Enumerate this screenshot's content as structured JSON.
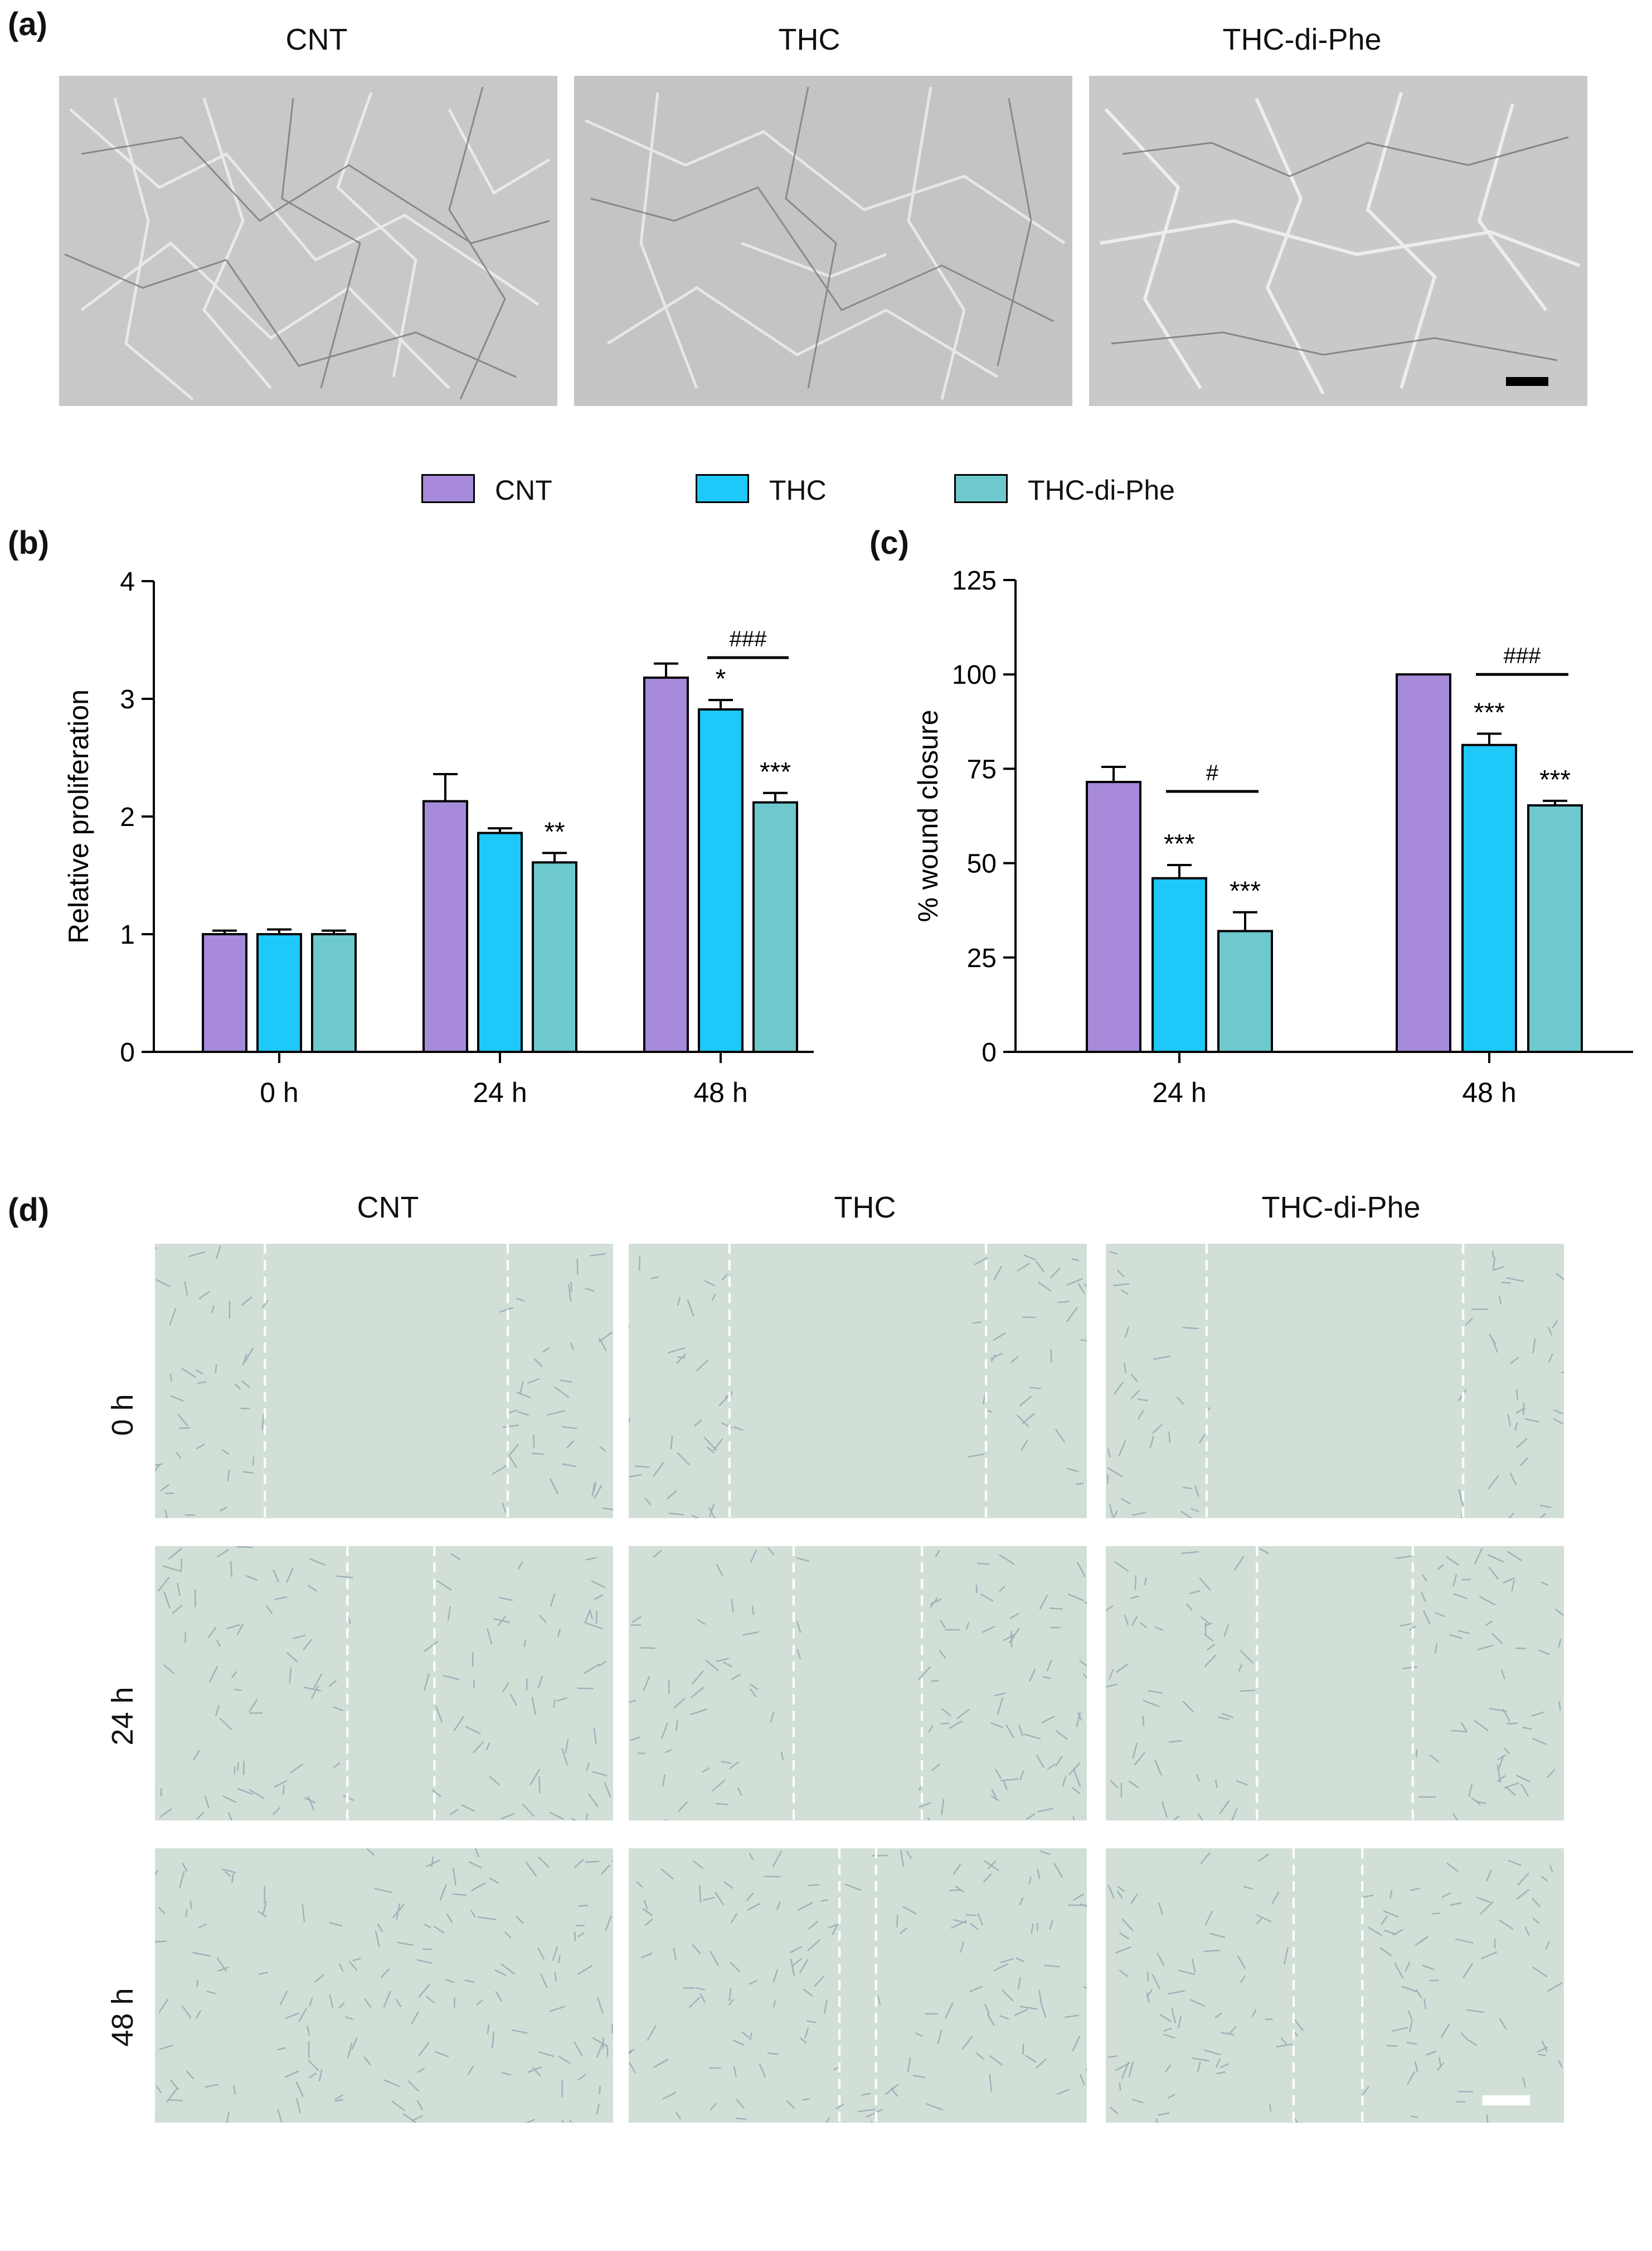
{
  "panels": {
    "a": {
      "letter": "(a)",
      "groups": [
        "CNT",
        "THC",
        "THC-di-Phe"
      ]
    },
    "b": {
      "letter": "(b)"
    },
    "c": {
      "letter": "(c)"
    },
    "d": {
      "letter": "(d)",
      "groups": [
        "CNT",
        "THC",
        "THC-di-Phe"
      ],
      "timepoints": [
        "0 h",
        "24 h",
        "48 h"
      ]
    }
  },
  "legend": [
    {
      "label": "CNT",
      "color": "#A78BDA"
    },
    {
      "label": "THC",
      "color": "#1EC8F8"
    },
    {
      "label": "THC-di-Phe",
      "color": "#6DC9CE"
    }
  ],
  "colors": {
    "cnt": "#A78BDA",
    "thc": "#1EC8F8",
    "thc_di_phe": "#6DC9CE",
    "micro_a": "#C6C6C6",
    "micro_d": "#D2DFD7"
  },
  "chart_data": [
    {
      "type": "bar",
      "panel": "b",
      "categories": [
        "0 h",
        "24 h",
        "48 h"
      ],
      "ylabel": "Relative proliferation",
      "xlabel": "",
      "ylim": [
        0,
        4
      ],
      "yticks": [
        "0",
        "1",
        "2",
        "3",
        "4"
      ],
      "series": [
        {
          "name": "CNT",
          "values": [
            1.0,
            2.13,
            3.18
          ],
          "errors": [
            0.03,
            0.23,
            0.12
          ],
          "stars": [
            "",
            "",
            ""
          ]
        },
        {
          "name": "THC",
          "values": [
            1.0,
            1.86,
            2.91
          ],
          "errors": [
            0.04,
            0.04,
            0.08
          ],
          "stars": [
            "",
            "",
            "*"
          ]
        },
        {
          "name": "THC-di-Phe",
          "values": [
            1.0,
            1.61,
            2.12
          ],
          "errors": [
            0.03,
            0.08,
            0.08
          ],
          "stars": [
            "",
            "**",
            "***"
          ]
        }
      ],
      "brackets": [
        {
          "category": 2,
          "from": 1,
          "to": 2,
          "label": "###",
          "y": 3.35
        }
      ]
    },
    {
      "type": "bar",
      "panel": "c",
      "categories": [
        "24 h",
        "48 h"
      ],
      "ylabel": "% wound closure",
      "xlabel": "",
      "ylim": [
        0,
        125
      ],
      "yticks": [
        "0",
        "25",
        "50",
        "75",
        "100",
        "125"
      ],
      "series": [
        {
          "name": "CNT",
          "values": [
            71.5,
            100
          ],
          "errors": [
            4,
            0
          ],
          "stars": [
            "",
            ""
          ]
        },
        {
          "name": "THC",
          "values": [
            46,
            81.3
          ],
          "errors": [
            3.5,
            3
          ],
          "stars": [
            "***",
            "***"
          ]
        },
        {
          "name": "THC-di-Phe",
          "values": [
            32,
            65.3
          ],
          "errors": [
            5,
            1.2
          ],
          "stars": [
            "***",
            "***"
          ]
        }
      ],
      "brackets": [
        {
          "category": 0,
          "from": 1,
          "to": 2,
          "label": "#",
          "y": 69
        },
        {
          "category": 1,
          "from": 1,
          "to": 2,
          "label": "###",
          "y": 100
        }
      ]
    }
  ]
}
